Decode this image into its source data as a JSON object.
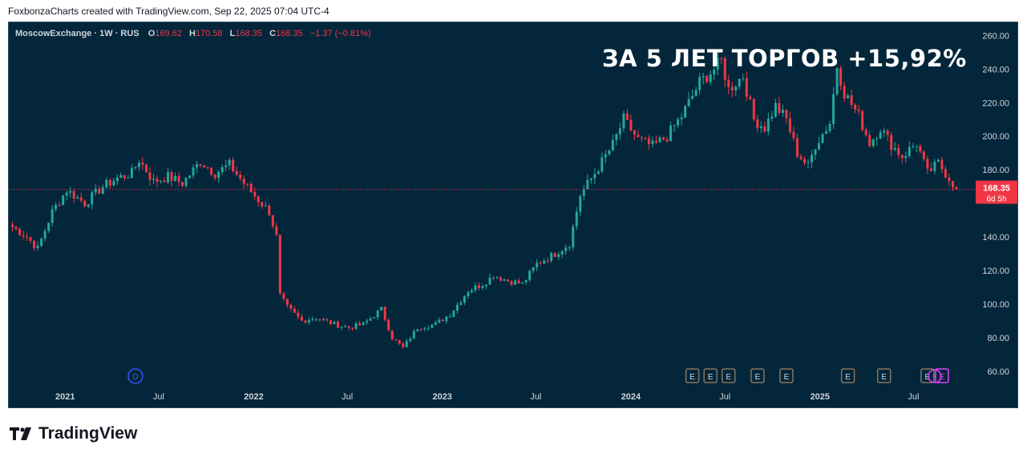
{
  "header": {
    "caption": "FoxbonzaCharts created with TradingView.com, Sep 22, 2025 07:04 UTC-4"
  },
  "legend": {
    "symbol": "MoscowExchange · 1W · RUS",
    "o_label": "O",
    "o_value": "169.62",
    "h_label": "H",
    "h_value": "170.58",
    "l_label": "L",
    "l_value": "168.35",
    "c_label": "C",
    "c_value": "168.35",
    "change": "−1.37 (−0.81%)"
  },
  "headline": "ЗА 5 ЛЕТ ТОРГОВ +15,92%",
  "price_badge": {
    "price": "168.35",
    "countdown": "6d 5h"
  },
  "footer": {
    "brand": "TradingView"
  },
  "colors": {
    "background": "#03263a",
    "up": "#26a69a",
    "down": "#f23645",
    "axis_text": "#d1d4dc",
    "badge": "#f23645",
    "marker_e": "#8a7360",
    "marker_dividend": "#3f51ff",
    "marker_split": "#e040fb"
  },
  "chart_data": {
    "type": "candlestick",
    "interval": "1W",
    "y_axis": {
      "ticks": [
        "260.00",
        "240.00",
        "220.00",
        "200.00",
        "180.00",
        "140.00",
        "120.00",
        "100.00",
        "80.00",
        "60.00"
      ],
      "range": [
        58,
        264
      ]
    },
    "x_axis": {
      "labels": [
        "2021",
        "Jul",
        "2022",
        "Jul",
        "2023",
        "Jul",
        "2024",
        "Jul",
        "2025",
        "Jul"
      ],
      "range": [
        "2020-09-14",
        "2025-10-20"
      ]
    },
    "last_price": 168.35,
    "anchors": [
      [
        "2020-09-21",
        146
      ],
      [
        "2020-10-19",
        140
      ],
      [
        "2020-11-09",
        133
      ],
      [
        "2020-12-07",
        155
      ],
      [
        "2021-01-04",
        168
      ],
      [
        "2021-02-08",
        160
      ],
      [
        "2021-03-15",
        170
      ],
      [
        "2021-04-12",
        175
      ],
      [
        "2021-05-10",
        178
      ],
      [
        "2021-05-24",
        186
      ],
      [
        "2021-06-21",
        173
      ],
      [
        "2021-07-19",
        176
      ],
      [
        "2021-08-16",
        172
      ],
      [
        "2021-09-20",
        185
      ],
      [
        "2021-10-18",
        178
      ],
      [
        "2021-11-15",
        183
      ],
      [
        "2021-12-13",
        172
      ],
      [
        "2022-01-10",
        162
      ],
      [
        "2022-01-31",
        155
      ],
      [
        "2022-02-14",
        140
      ],
      [
        "2022-02-21",
        105
      ],
      [
        "2022-03-07",
        98
      ],
      [
        "2022-04-04",
        90
      ],
      [
        "2022-05-02",
        92
      ],
      [
        "2022-06-06",
        88
      ],
      [
        "2022-07-04",
        86
      ],
      [
        "2022-08-01",
        88
      ],
      [
        "2022-09-05",
        97
      ],
      [
        "2022-09-26",
        80
      ],
      [
        "2022-10-17",
        74
      ],
      [
        "2022-11-14",
        86
      ],
      [
        "2022-12-19",
        88
      ],
      [
        "2023-01-16",
        94
      ],
      [
        "2023-02-20",
        108
      ],
      [
        "2023-03-20",
        112
      ],
      [
        "2023-04-10",
        117
      ],
      [
        "2023-05-08",
        114
      ],
      [
        "2023-06-05",
        112
      ],
      [
        "2023-07-03",
        124
      ],
      [
        "2023-08-07",
        130
      ],
      [
        "2023-09-04",
        136
      ],
      [
        "2023-09-25",
        165
      ],
      [
        "2023-10-23",
        178
      ],
      [
        "2023-11-27",
        195
      ],
      [
        "2023-12-18",
        210
      ],
      [
        "2024-01-15",
        198
      ],
      [
        "2024-02-12",
        194
      ],
      [
        "2024-03-11",
        200
      ],
      [
        "2024-04-08",
        212
      ],
      [
        "2024-05-13",
        232
      ],
      [
        "2024-06-10",
        240
      ],
      [
        "2024-06-24",
        245
      ],
      [
        "2024-07-08",
        228
      ],
      [
        "2024-08-05",
        236
      ],
      [
        "2024-08-26",
        210
      ],
      [
        "2024-09-16",
        205
      ],
      [
        "2024-10-07",
        218
      ],
      [
        "2024-10-28",
        210
      ],
      [
        "2024-11-18",
        190
      ],
      [
        "2024-12-09",
        182
      ],
      [
        "2024-12-23",
        195
      ],
      [
        "2025-01-20",
        208
      ],
      [
        "2025-02-03",
        242
      ],
      [
        "2025-02-17",
        226
      ],
      [
        "2025-03-17",
        212
      ],
      [
        "2025-04-07",
        196
      ],
      [
        "2025-04-28",
        205
      ],
      [
        "2025-05-19",
        195
      ],
      [
        "2025-06-09",
        188
      ],
      [
        "2025-07-07",
        196
      ],
      [
        "2025-07-28",
        178
      ],
      [
        "2025-08-18",
        184
      ],
      [
        "2025-09-08",
        175
      ],
      [
        "2025-09-22",
        168.35
      ]
    ],
    "events": [
      {
        "type": "dividend",
        "label": "D",
        "date": "2021-05-17"
      },
      {
        "type": "earnings",
        "label": "E",
        "date": "2024-04-29"
      },
      {
        "type": "earnings",
        "label": "E",
        "date": "2024-06-03"
      },
      {
        "type": "earnings",
        "label": "E",
        "date": "2024-07-08"
      },
      {
        "type": "earnings",
        "label": "E",
        "date": "2024-09-02"
      },
      {
        "type": "earnings",
        "label": "E",
        "date": "2024-10-28"
      },
      {
        "type": "earnings",
        "label": "E",
        "date": "2025-02-24"
      },
      {
        "type": "earnings",
        "label": "E",
        "date": "2025-05-05"
      },
      {
        "type": "earnings",
        "label": "E",
        "date": "2025-07-28"
      },
      {
        "type": "split",
        "label": "⚡",
        "date": "2025-08-11"
      },
      {
        "type": "earnings_upcoming",
        "label": "E",
        "date": "2025-08-25"
      }
    ]
  }
}
